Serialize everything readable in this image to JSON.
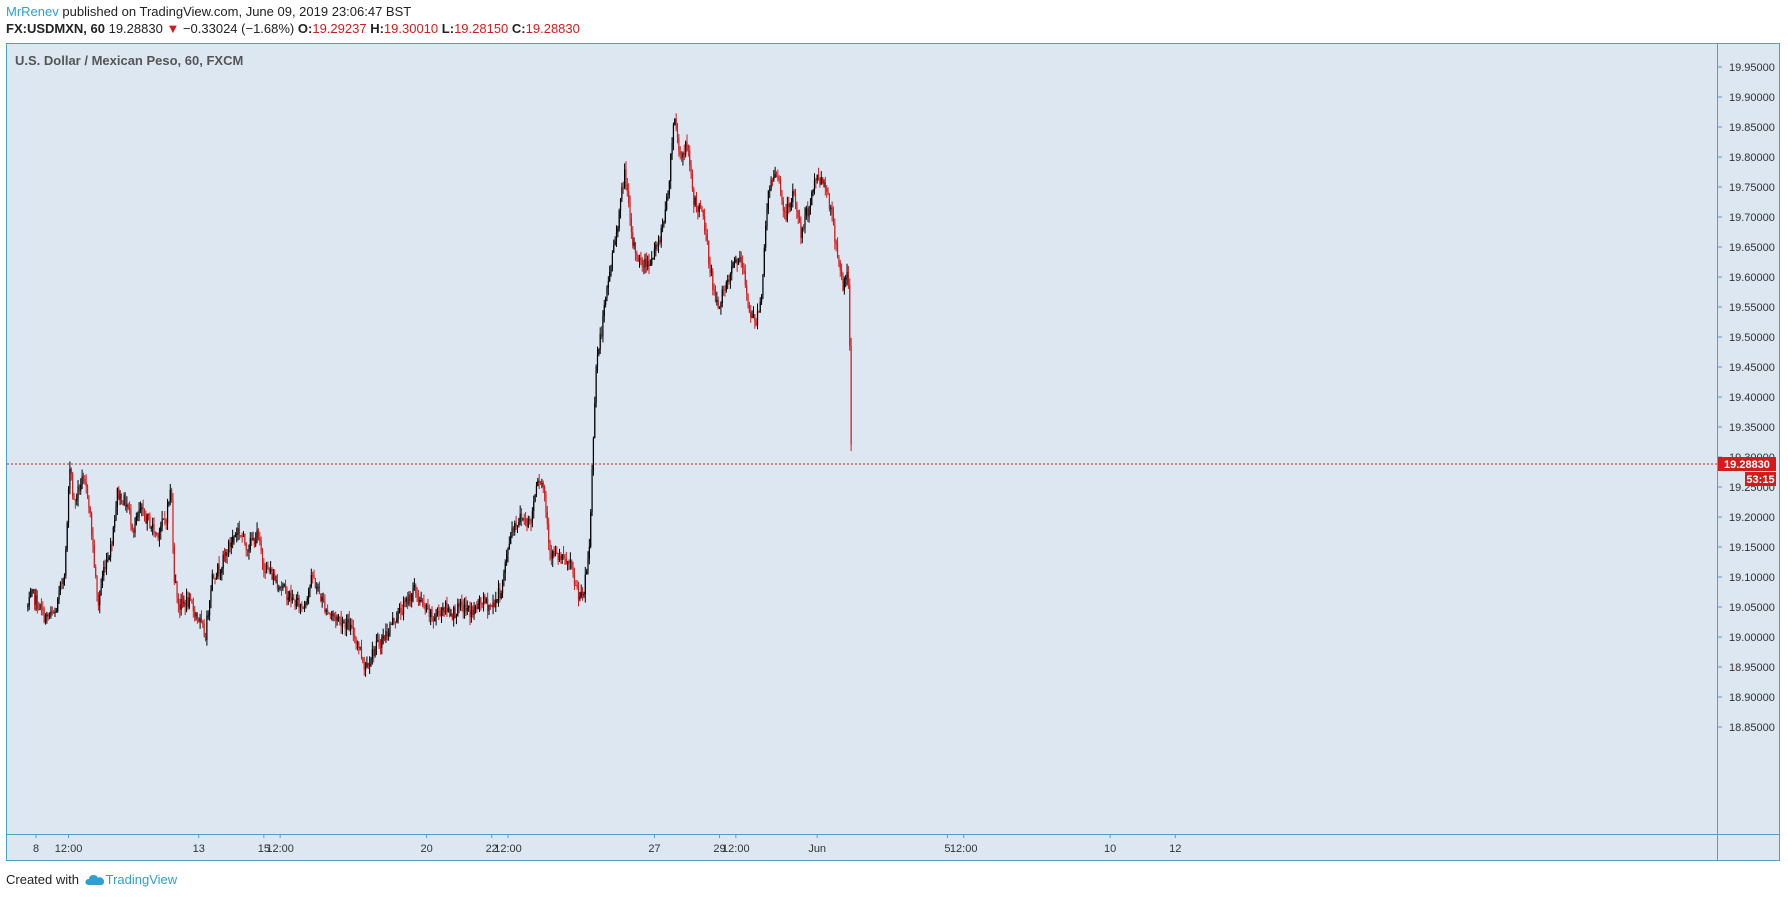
{
  "header": {
    "author": "MrRenev",
    "published_text": "published on TradingView.com, June 09, 2019 23:06:47 BST",
    "symbol": "FX:USDMXN, 60",
    "last_price": "19.28830",
    "change": "−0.33024 (−1.68%)",
    "open_label": "O:",
    "open_value": "19.29237",
    "high_label": "H:",
    "high_value": "19.30010",
    "low_label": "L:",
    "low_value": "19.28150",
    "close_label": "C:",
    "close_value": "19.28830"
  },
  "chart_title": "U.S. Dollar / Mexican Peso, 60, FXCM",
  "footer": {
    "created_with": "Created with",
    "brand": "TradingView"
  },
  "colors": {
    "up": "#000000",
    "down": "#d21c1c",
    "price_line": "#d21c1c",
    "background": "#dce7f2"
  },
  "chart_data": {
    "type": "candlestick",
    "symbol": "FX:USDMXN",
    "interval": "60",
    "y_ticks": [
      "18.85000",
      "18.90000",
      "18.95000",
      "19.00000",
      "19.05000",
      "19.10000",
      "19.15000",
      "19.20000",
      "19.25000",
      "19.30000",
      "19.35000",
      "19.40000",
      "19.45000",
      "19.50000",
      "19.55000",
      "19.60000",
      "19.65000",
      "19.70000",
      "19.75000",
      "19.80000",
      "19.85000",
      "19.90000",
      "19.95000"
    ],
    "ylim": [
      18.83,
      19.98
    ],
    "x_ticks": [
      {
        "label": "8",
        "day": 0.0
      },
      {
        "label": "12:00",
        "day": 1.0
      },
      {
        "label": "13",
        "day": 5.0
      },
      {
        "label": "15",
        "day": 7.0
      },
      {
        "label": "12:00",
        "day": 7.5
      },
      {
        "label": "20",
        "day": 12.0
      },
      {
        "label": "22",
        "day": 14.0
      },
      {
        "label": "12:00",
        "day": 14.5
      },
      {
        "label": "27",
        "day": 19.0
      },
      {
        "label": "29",
        "day": 21.0
      },
      {
        "label": "12:00",
        "day": 21.5
      },
      {
        "label": "Jun",
        "day": 24.0
      },
      {
        "label": "5",
        "day": 28.0
      },
      {
        "label": "12:00",
        "day": 28.5
      },
      {
        "label": "10",
        "day": 33.0
      },
      {
        "label": "12",
        "day": 35.0
      }
    ],
    "x_unit": "days from May 8 2019, trading days only",
    "current_price_label": "19.28830",
    "countdown_label": "53:15",
    "current_price": 19.2883,
    "price_path": [
      [
        -0.25,
        19.05
      ],
      [
        -0.1,
        19.07
      ],
      [
        0.3,
        19.03
      ],
      [
        0.6,
        19.04
      ],
      [
        0.9,
        19.12
      ],
      [
        1.05,
        19.3
      ],
      [
        1.15,
        19.22
      ],
      [
        1.4,
        19.26
      ],
      [
        1.6,
        19.24
      ],
      [
        1.75,
        19.15
      ],
      [
        1.9,
        19.05
      ],
      [
        2.1,
        19.12
      ],
      [
        2.3,
        19.15
      ],
      [
        2.5,
        19.24
      ],
      [
        2.8,
        19.22
      ],
      [
        3.0,
        19.18
      ],
      [
        3.2,
        19.21
      ],
      [
        3.5,
        19.19
      ],
      [
        3.7,
        19.17
      ],
      [
        4.0,
        19.2
      ],
      [
        4.15,
        19.25
      ],
      [
        4.25,
        19.1
      ],
      [
        4.4,
        19.05
      ],
      [
        4.6,
        19.06
      ],
      [
        4.8,
        19.05
      ],
      [
        5.0,
        19.03
      ],
      [
        5.2,
        19.0
      ],
      [
        5.4,
        19.1
      ],
      [
        5.7,
        19.12
      ],
      [
        6.0,
        19.16
      ],
      [
        6.2,
        19.18
      ],
      [
        6.5,
        19.15
      ],
      [
        6.8,
        19.17
      ],
      [
        7.0,
        19.12
      ],
      [
        7.3,
        19.1
      ],
      [
        7.6,
        19.08
      ],
      [
        7.9,
        19.06
      ],
      [
        8.2,
        19.05
      ],
      [
        8.5,
        19.1
      ],
      [
        8.8,
        19.06
      ],
      [
        9.0,
        19.04
      ],
      [
        9.3,
        19.03
      ],
      [
        9.6,
        19.02
      ],
      [
        9.9,
        18.99
      ],
      [
        10.1,
        18.95
      ],
      [
        10.4,
        18.98
      ],
      [
        10.7,
        19.0
      ],
      [
        11.0,
        19.03
      ],
      [
        11.3,
        19.05
      ],
      [
        11.6,
        19.08
      ],
      [
        11.9,
        19.05
      ],
      [
        12.2,
        19.03
      ],
      [
        12.5,
        19.05
      ],
      [
        12.8,
        19.04
      ],
      [
        13.1,
        19.05
      ],
      [
        13.4,
        19.04
      ],
      [
        13.7,
        19.06
      ],
      [
        14.0,
        19.05
      ],
      [
        14.3,
        19.08
      ],
      [
        14.6,
        19.18
      ],
      [
        14.9,
        19.2
      ],
      [
        15.2,
        19.19
      ],
      [
        15.4,
        19.27
      ],
      [
        15.6,
        19.25
      ],
      [
        15.8,
        19.14
      ],
      [
        16.1,
        19.13
      ],
      [
        16.4,
        19.12
      ],
      [
        16.6,
        19.08
      ],
      [
        16.8,
        19.06
      ],
      [
        17.0,
        19.15
      ],
      [
        17.2,
        19.45
      ],
      [
        17.4,
        19.52
      ],
      [
        17.6,
        19.6
      ],
      [
        17.9,
        19.7
      ],
      [
        18.1,
        19.78
      ],
      [
        18.3,
        19.66
      ],
      [
        18.6,
        19.62
      ],
      [
        18.9,
        19.63
      ],
      [
        19.1,
        19.65
      ],
      [
        19.4,
        19.73
      ],
      [
        19.6,
        19.87
      ],
      [
        19.8,
        19.8
      ],
      [
        20.0,
        19.82
      ],
      [
        20.2,
        19.73
      ],
      [
        20.5,
        19.7
      ],
      [
        20.7,
        19.62
      ],
      [
        20.9,
        19.55
      ],
      [
        21.2,
        19.58
      ],
      [
        21.5,
        19.63
      ],
      [
        21.7,
        19.62
      ],
      [
        21.9,
        19.55
      ],
      [
        22.1,
        19.52
      ],
      [
        22.3,
        19.58
      ],
      [
        22.5,
        19.75
      ],
      [
        22.8,
        19.77
      ],
      [
        23.0,
        19.7
      ],
      [
        23.3,
        19.74
      ],
      [
        23.5,
        19.67
      ],
      [
        23.7,
        19.71
      ],
      [
        24.0,
        19.77
      ],
      [
        24.3,
        19.75
      ],
      [
        24.6,
        19.65
      ],
      [
        24.8,
        19.58
      ],
      [
        24.95,
        19.61
      ],
      [
        25.0,
        19.48
      ],
      [
        25.05,
        19.29
      ]
    ]
  }
}
